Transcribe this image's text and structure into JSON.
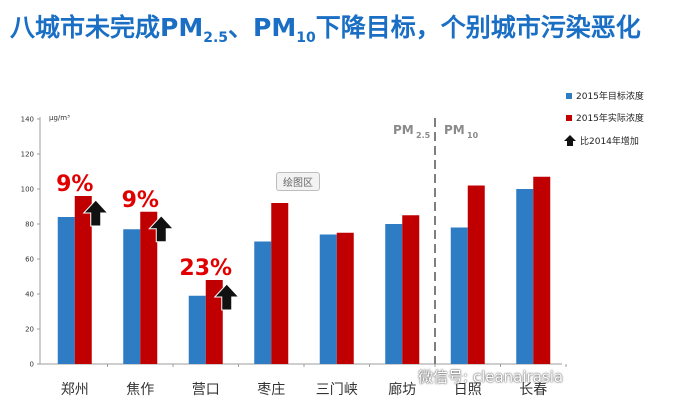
{
  "title": {
    "part1": "八城市未完成PM",
    "sub1": "2.5",
    "part2": "、PM",
    "sub2": "10",
    "part3": "下降目标，个别城市污染恶化"
  },
  "chart_data": {
    "type": "bar",
    "unit": "μg/m³",
    "categories": [
      "郑州",
      "焦作",
      "营口",
      "枣庄",
      "三门峡",
      "廊坊",
      "日照",
      "长春"
    ],
    "series": [
      {
        "name": "2015年目标浓度",
        "color": "#2e7cc4",
        "values": [
          84,
          77,
          39,
          70,
          74,
          80,
          78,
          100
        ]
      },
      {
        "name": "2015年实际浓度",
        "color": "#c00000",
        "values": [
          96,
          87,
          48,
          92,
          75,
          85,
          102,
          107
        ]
      }
    ],
    "yticks": [
      0,
      20,
      40,
      60,
      80,
      100,
      120,
      140
    ],
    "ylim": [
      0,
      140
    ],
    "legend_placement": "top-right",
    "increase_legend": "比2014年增加",
    "annotations": [
      {
        "category": "郑州",
        "label": "9%"
      },
      {
        "category": "焦作",
        "label": "9%"
      },
      {
        "category": "营口",
        "label": "23%"
      }
    ],
    "divider": {
      "after_category": "廊坊",
      "left_label": "PM",
      "left_sub": "2.5",
      "right_label": "PM",
      "right_sub": "10"
    }
  },
  "plot_area_label": "绘图区",
  "watermark": "微信号: cleanairasia"
}
